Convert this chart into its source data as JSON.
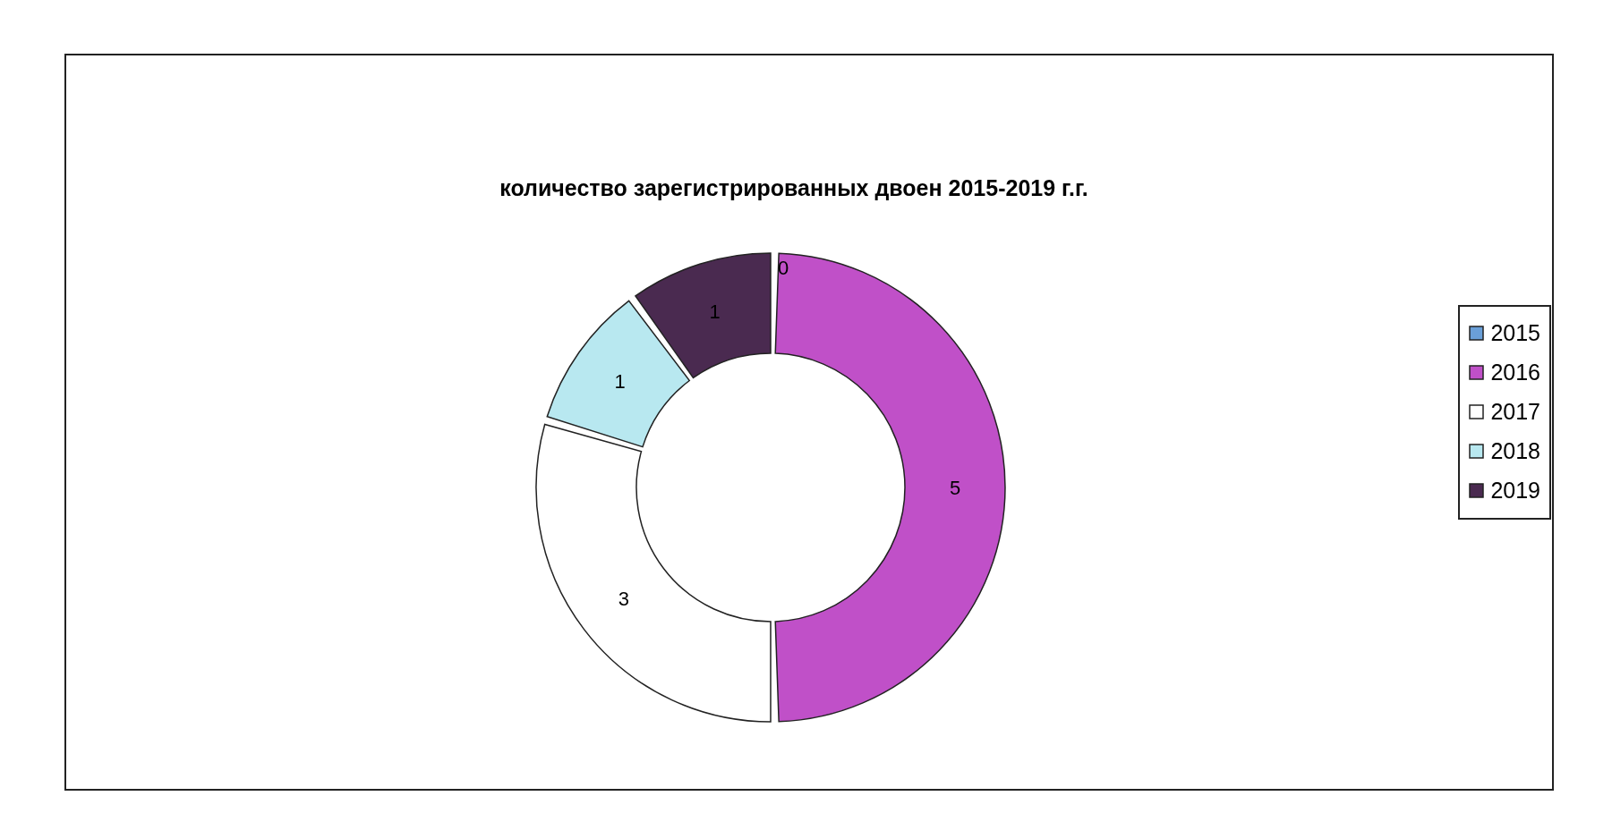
{
  "chart_data": {
    "type": "donut",
    "title": "количество зарегистрированных двоен 2015-2019 г.г.",
    "categories": [
      "2015",
      "2016",
      "2017",
      "2018",
      "2019"
    ],
    "values": [
      0,
      5,
      3,
      1,
      1
    ],
    "colors": [
      "#6a9fd8",
      "#c050c8",
      "#ffffff",
      "#b8e8f0",
      "#4a2a50"
    ],
    "value_labels": [
      "0",
      "5",
      "3",
      "1",
      "1"
    ],
    "legend": "right"
  }
}
